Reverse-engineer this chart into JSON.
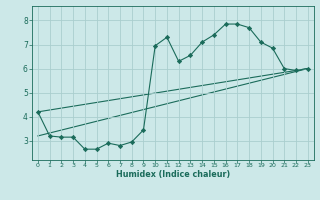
{
  "xlabel": "Humidex (Indice chaleur)",
  "background_color": "#cce8e8",
  "line_color": "#1a6b5a",
  "grid_color": "#aacece",
  "xlim": [
    -0.5,
    23.5
  ],
  "ylim": [
    2.2,
    8.6
  ],
  "xticks": [
    0,
    1,
    2,
    3,
    4,
    5,
    6,
    7,
    8,
    9,
    10,
    11,
    12,
    13,
    14,
    15,
    16,
    17,
    18,
    19,
    20,
    21,
    22,
    23
  ],
  "yticks": [
    3,
    4,
    5,
    6,
    7,
    8
  ],
  "line1_x": [
    0,
    1,
    2,
    3,
    4,
    5,
    6,
    7,
    8,
    9,
    10,
    11,
    12,
    13,
    14,
    15,
    16,
    17,
    18,
    19,
    20,
    21,
    22,
    23
  ],
  "line1_y": [
    4.2,
    3.2,
    3.15,
    3.15,
    2.65,
    2.65,
    2.9,
    2.8,
    2.95,
    3.45,
    6.95,
    7.3,
    6.3,
    6.55,
    7.1,
    7.4,
    7.85,
    7.85,
    7.7,
    7.1,
    6.85,
    6.0,
    5.92,
    6.0
  ],
  "line2_x": [
    0,
    23
  ],
  "line2_y": [
    4.2,
    6.0
  ],
  "line3_x": [
    0,
    23
  ],
  "line3_y": [
    3.2,
    6.0
  ]
}
